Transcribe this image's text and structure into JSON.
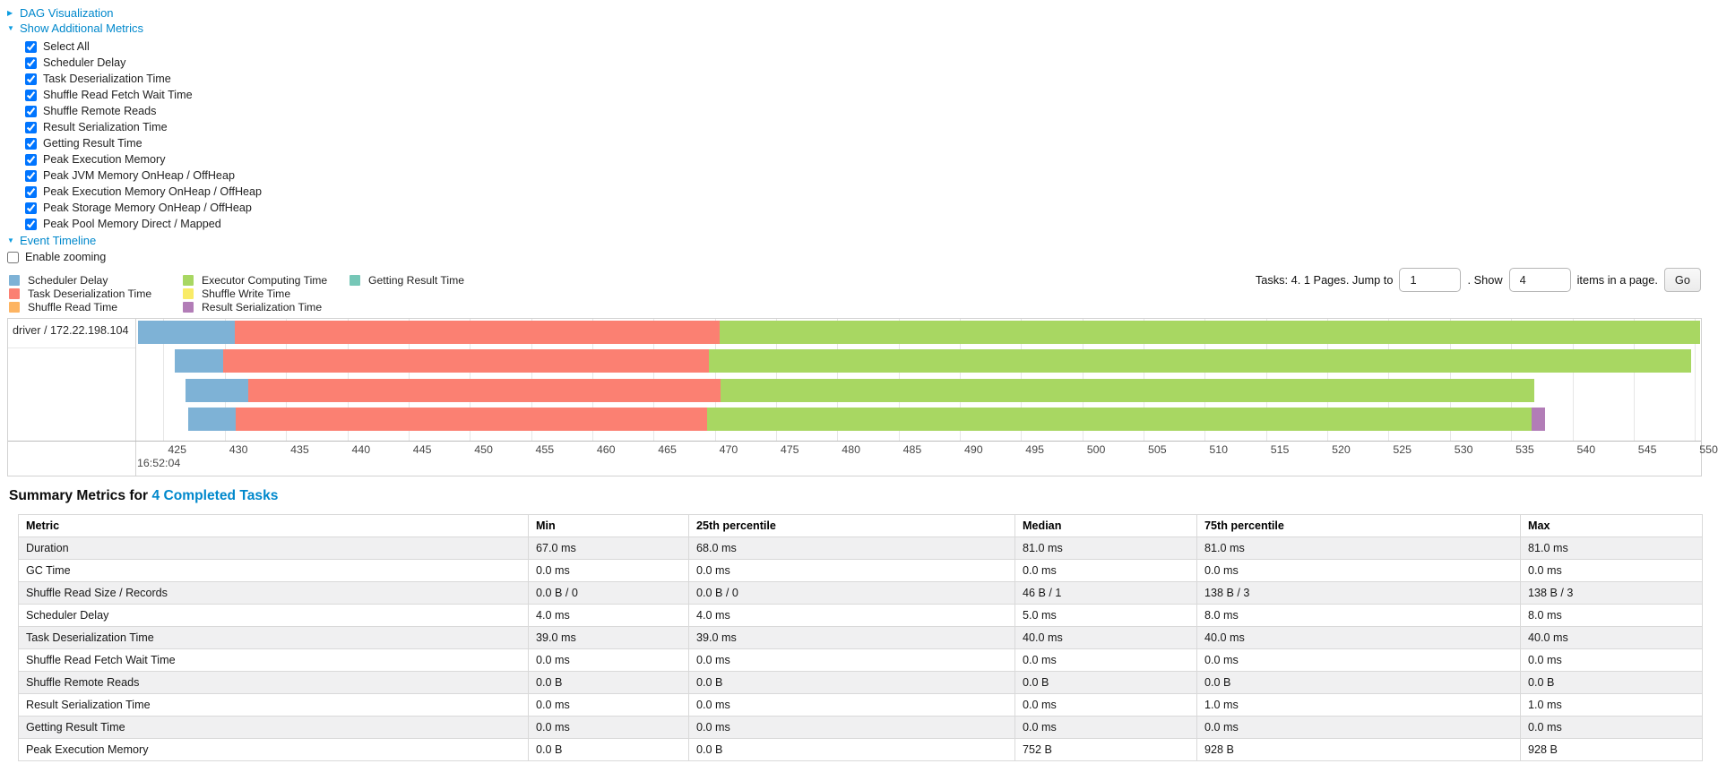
{
  "controls": {
    "dag": {
      "arrow": "▶",
      "label": "DAG Visualization"
    },
    "additional_metrics": {
      "arrow": "▼",
      "label": "Show Additional Metrics",
      "checkboxes": [
        {
          "label": "Select All",
          "checked": true
        },
        {
          "label": "Scheduler Delay",
          "checked": true
        },
        {
          "label": "Task Deserialization Time",
          "checked": true
        },
        {
          "label": "Shuffle Read Fetch Wait Time",
          "checked": true
        },
        {
          "label": "Shuffle Remote Reads",
          "checked": true
        },
        {
          "label": "Result Serialization Time",
          "checked": true
        },
        {
          "label": "Getting Result Time",
          "checked": true
        },
        {
          "label": "Peak Execution Memory",
          "checked": true
        },
        {
          "label": "Peak JVM Memory OnHeap / OffHeap",
          "checked": true
        },
        {
          "label": "Peak Execution Memory OnHeap / OffHeap",
          "checked": true
        },
        {
          "label": "Peak Storage Memory OnHeap / OffHeap",
          "checked": true
        },
        {
          "label": "Peak Pool Memory Direct / Mapped",
          "checked": true
        }
      ]
    },
    "event_timeline": {
      "arrow": "▼",
      "label": "Event Timeline"
    },
    "enable_zooming": {
      "label": "Enable zooming",
      "checked": false
    }
  },
  "pagination": {
    "text_before": "Tasks: 4. 1 Pages. Jump to",
    "jump_value": "1",
    "text_middle": ". Show",
    "show_value": "4",
    "text_after": "items in a page.",
    "go_label": "Go"
  },
  "chart_data": {
    "type": "timeline",
    "title": "Event Timeline",
    "group_label": "driver / 172.22.198.104",
    "x_unit": "ms within second 16:52:04",
    "axis": {
      "min": 422.7,
      "max": 550.5,
      "tick_first": 425,
      "tick_step": 5,
      "tick_last": 550,
      "start_time_label": "16:52:04"
    },
    "colors": {
      "scheduler_delay": "#7EB2D6",
      "task_deserialization": "#FB8072",
      "shuffle_read": "#FDB462",
      "executor_computing": "#A8D762",
      "shuffle_write": "#F9EB67",
      "result_serialization": "#B27DB7",
      "getting_result": "#76C7B7"
    },
    "legend_columns": [
      [
        {
          "label": "Scheduler Delay",
          "color_key": "scheduler_delay"
        },
        {
          "label": "Task Deserialization Time",
          "color_key": "task_deserialization"
        },
        {
          "label": "Shuffle Read Time",
          "color_key": "shuffle_read"
        }
      ],
      [
        {
          "label": "Executor Computing Time",
          "color_key": "executor_computing"
        },
        {
          "label": "Shuffle Write Time",
          "color_key": "shuffle_write"
        },
        {
          "label": "Result Serialization Time",
          "color_key": "result_serialization"
        }
      ],
      [
        {
          "label": "Getting Result Time",
          "color_key": "getting_result"
        }
      ]
    ],
    "tasks": [
      {
        "segments": [
          [
            "scheduler_delay",
            422.9,
            430.8
          ],
          [
            "task_deserialization",
            430.8,
            470.4
          ],
          [
            "executor_computing",
            470.4,
            550.4
          ]
        ]
      },
      {
        "segments": [
          [
            "scheduler_delay",
            425.9,
            429.9
          ],
          [
            "task_deserialization",
            429.9,
            469.5
          ],
          [
            "executor_computing",
            469.5,
            549.7
          ]
        ]
      },
      {
        "segments": [
          [
            "scheduler_delay",
            426.8,
            431.9
          ],
          [
            "task_deserialization",
            431.9,
            470.5
          ],
          [
            "executor_computing",
            470.5,
            536.9
          ]
        ]
      },
      {
        "segments": [
          [
            "scheduler_delay",
            427.0,
            430.9
          ],
          [
            "task_deserialization",
            430.9,
            469.4
          ],
          [
            "executor_computing",
            469.4,
            536.7
          ],
          [
            "result_serialization",
            536.7,
            537.8
          ]
        ]
      }
    ]
  },
  "summary": {
    "title_prefix": "Summary Metrics for",
    "title_link": "4 Completed Tasks",
    "columns": [
      "Metric",
      "Min",
      "25th percentile",
      "Median",
      "75th percentile",
      "Max"
    ],
    "rows": [
      [
        "Duration",
        "67.0 ms",
        "68.0 ms",
        "81.0 ms",
        "81.0 ms",
        "81.0 ms"
      ],
      [
        "GC Time",
        "0.0 ms",
        "0.0 ms",
        "0.0 ms",
        "0.0 ms",
        "0.0 ms"
      ],
      [
        "Shuffle Read Size / Records",
        "0.0 B / 0",
        "0.0 B / 0",
        "46 B / 1",
        "138 B / 3",
        "138 B / 3"
      ],
      [
        "Scheduler Delay",
        "4.0 ms",
        "4.0 ms",
        "5.0 ms",
        "8.0 ms",
        "8.0 ms"
      ],
      [
        "Task Deserialization Time",
        "39.0 ms",
        "39.0 ms",
        "40.0 ms",
        "40.0 ms",
        "40.0 ms"
      ],
      [
        "Shuffle Read Fetch Wait Time",
        "0.0 ms",
        "0.0 ms",
        "0.0 ms",
        "0.0 ms",
        "0.0 ms"
      ],
      [
        "Shuffle Remote Reads",
        "0.0 B",
        "0.0 B",
        "0.0 B",
        "0.0 B",
        "0.0 B"
      ],
      [
        "Result Serialization Time",
        "0.0 ms",
        "0.0 ms",
        "0.0 ms",
        "1.0 ms",
        "1.0 ms"
      ],
      [
        "Getting Result Time",
        "0.0 ms",
        "0.0 ms",
        "0.0 ms",
        "0.0 ms",
        "0.0 ms"
      ],
      [
        "Peak Execution Memory",
        "0.0 B",
        "0.0 B",
        "752 B",
        "928 B",
        "928 B"
      ]
    ]
  }
}
